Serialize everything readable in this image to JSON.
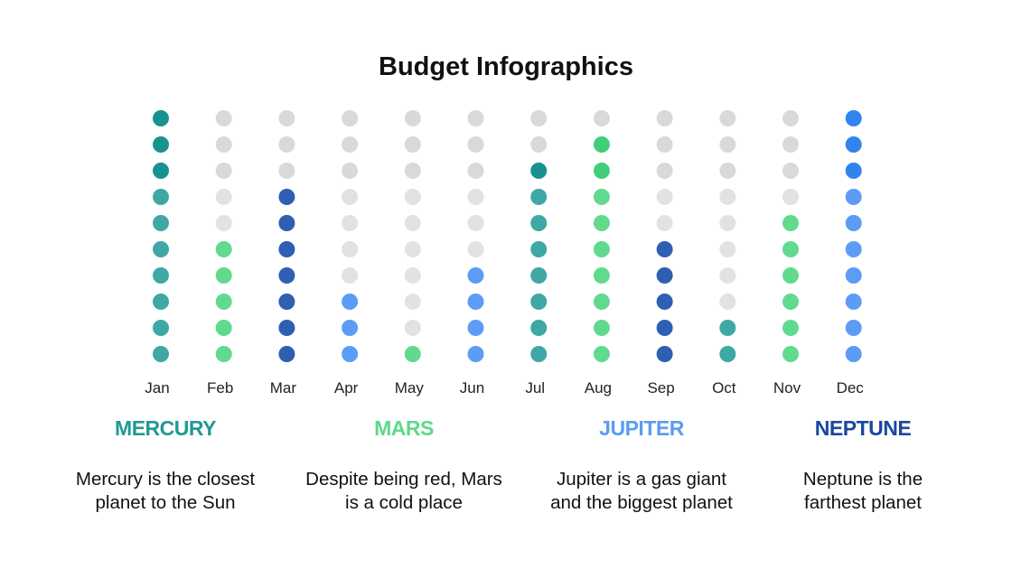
{
  "title": "Budget Infographics",
  "chart_data": {
    "type": "dot-column",
    "title": "Budget Infographics",
    "categories": [
      "Jan",
      "Feb",
      "Mar",
      "Apr",
      "May",
      "Jun",
      "Jul",
      "Aug",
      "Sep",
      "Oct",
      "Nov",
      "Dec"
    ],
    "max_dots": 10,
    "values": [
      10,
      5,
      7,
      3,
      1,
      4,
      8,
      9,
      5,
      2,
      6,
      10
    ],
    "series_of_category": [
      "Mercury",
      "Mars",
      "Neptune",
      "Jupiter",
      "Mars",
      "Jupiter",
      "Mercury",
      "Mars",
      "Neptune",
      "Mercury",
      "Mars",
      "Jupiter"
    ],
    "empty_color": "#d9d9d9",
    "series_colors": {
      "Mercury": {
        "solid": "#17928f",
        "light": "#3fa8a5"
      },
      "Mars": {
        "solid": "#40cf78",
        "light": "#62da8e"
      },
      "Jupiter": {
        "solid": "#2f84ee",
        "light": "#5d9cf6"
      },
      "Neptune": {
        "solid": "#1d4ea0",
        "light": "#2f5fb2"
      }
    }
  },
  "planets": [
    {
      "name": "MERCURY",
      "color": "#1f9a93",
      "line1": "Mercury is the closest",
      "line2": "planet to the Sun"
    },
    {
      "name": "MARS",
      "color": "#5ed98a",
      "line1": "Despite being red, Mars",
      "line2": "is a cold place"
    },
    {
      "name": "JUPITER",
      "color": "#5a9cf0",
      "line1": "Jupiter is a gas giant",
      "line2": "and the biggest planet"
    },
    {
      "name": "NEPTUNE",
      "color": "#1a479f",
      "line1": "Neptune is the",
      "line2": "farthest planet"
    }
  ]
}
